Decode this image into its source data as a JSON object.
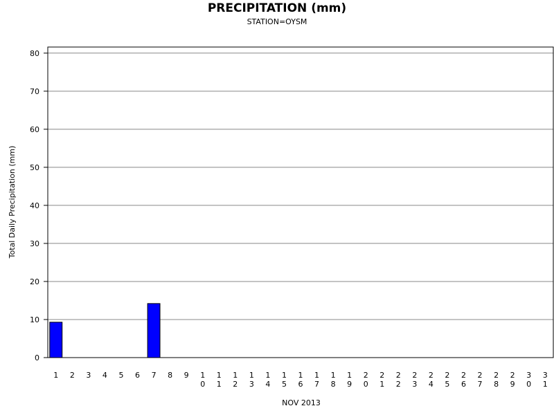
{
  "chart_data": {
    "type": "bar",
    "title": "PRECIPITATION (mm)",
    "subtitle": "STATION=OYSM",
    "x_label": "NOV 2013",
    "y_label": "Total Daily Precipitation (mm)",
    "categories": [
      "1",
      "2",
      "3",
      "4",
      "5",
      "6",
      "7",
      "8",
      "9",
      "10",
      "11",
      "12",
      "13",
      "14",
      "15",
      "16",
      "17",
      "18",
      "19",
      "20",
      "21",
      "22",
      "23",
      "24",
      "25",
      "26",
      "27",
      "28",
      "29",
      "30",
      "31"
    ],
    "values": [
      9.3,
      0,
      0,
      0,
      0,
      0,
      14.2,
      0,
      0,
      0,
      0,
      0,
      0,
      0,
      0,
      0,
      0,
      0,
      0,
      0,
      0,
      0,
      0,
      0,
      0,
      0,
      0,
      0,
      0,
      0,
      0
    ],
    "color": "#0000ff",
    "ylim": [
      0,
      81.6
    ],
    "yticks": [
      0,
      10,
      20,
      30,
      40,
      50,
      60,
      70,
      80
    ],
    "grid": true
  }
}
